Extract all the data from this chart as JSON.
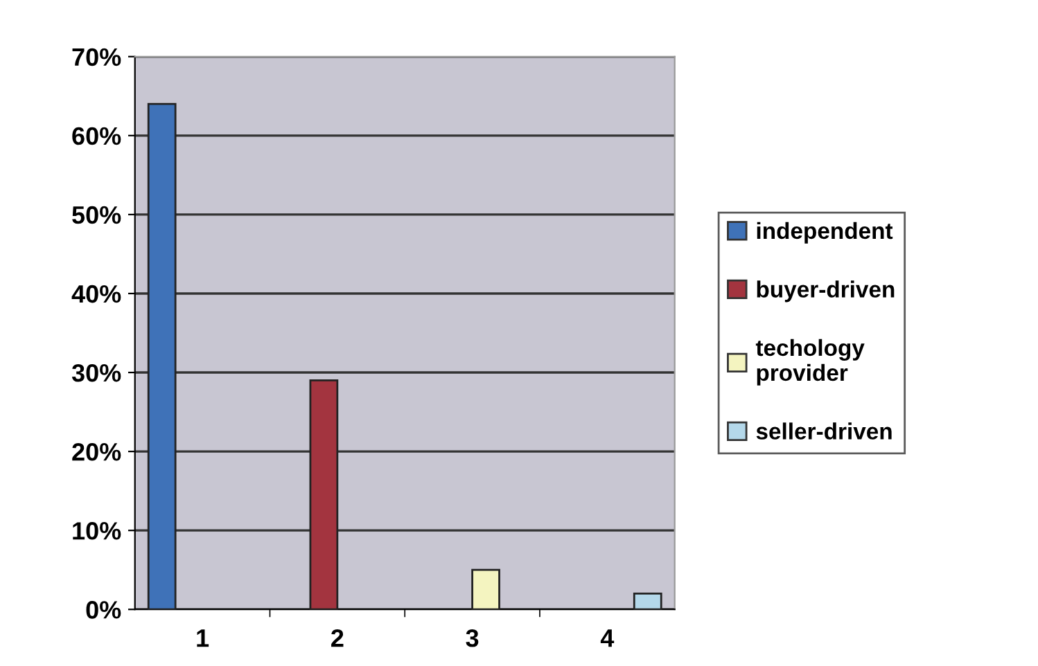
{
  "chart_data": {
    "type": "bar",
    "categories": [
      "1",
      "2",
      "3",
      "4"
    ],
    "series": [
      {
        "name": "independent",
        "color": "#3f72b8",
        "values": [
          64,
          null,
          null,
          null
        ]
      },
      {
        "name": "buyer-driven",
        "color": "#a3343f",
        "values": [
          null,
          29,
          null,
          null
        ]
      },
      {
        "name": "techology\nprovider",
        "color": "#f4f4c0",
        "values": [
          null,
          null,
          5,
          null
        ]
      },
      {
        "name": "seller-driven",
        "color": "#b4d8ea",
        "values": [
          null,
          null,
          null,
          2
        ]
      }
    ],
    "ylim": [
      0,
      70
    ],
    "yticks": [
      {
        "value": 0,
        "label": "0%"
      },
      {
        "value": 10,
        "label": "10%"
      },
      {
        "value": 20,
        "label": "20%"
      },
      {
        "value": 30,
        "label": "30%"
      },
      {
        "value": 40,
        "label": "40%"
      },
      {
        "value": 50,
        "label": "50%"
      },
      {
        "value": 60,
        "label": "60%"
      },
      {
        "value": 70,
        "label": "70%"
      }
    ],
    "grid": "y",
    "legend": "right"
  }
}
